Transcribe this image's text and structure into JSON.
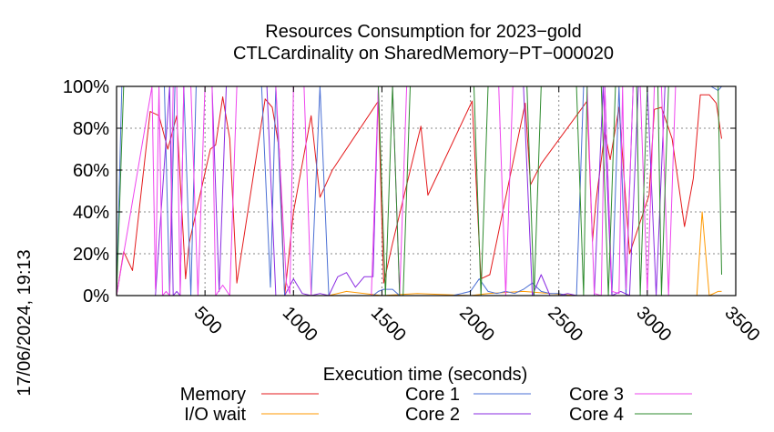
{
  "chart_data": {
    "type": "line",
    "title": "Resources Consumption for 2023−gold",
    "subtitle": "CTLCardinality on SharedMemory−PT−000020",
    "xlabel": "Execution time (seconds)",
    "ylabel": "",
    "side_label": "17/06/2024, 19:13",
    "xlim": [
      0,
      3500
    ],
    "ylim": [
      0,
      100
    ],
    "x_ticks": [
      500,
      1000,
      1500,
      2000,
      2500,
      3000,
      3500
    ],
    "y_ticks": [
      0,
      20,
      40,
      60,
      80,
      100
    ],
    "y_tick_labels": [
      "0%",
      "20%",
      "40%",
      "60%",
      "80%",
      "100%"
    ],
    "grid": true,
    "legend_position": "bottom",
    "series": [
      {
        "name": "Memory",
        "color": "#e41a1c",
        "x": [
          0,
          40,
          90,
          190,
          240,
          290,
          340,
          390,
          410,
          530,
          560,
          600,
          640,
          680,
          840,
          880,
          920,
          950,
          1000,
          1100,
          1150,
          1220,
          1480,
          1510,
          1560,
          1720,
          1760,
          2010,
          2060,
          2110,
          2310,
          2340,
          2400,
          2660,
          2690,
          2710,
          2760,
          2790,
          2840,
          2900,
          3010,
          3040,
          3080,
          3140,
          3210,
          3260,
          3300,
          3350,
          3390,
          3420
        ],
        "y": [
          0,
          21,
          12,
          88,
          86,
          70,
          86,
          8,
          25,
          70,
          72,
          95,
          75,
          6,
          94,
          90,
          70,
          0,
          40,
          86,
          47,
          60,
          93,
          6,
          25,
          81,
          48,
          93,
          8,
          10,
          92,
          53,
          63,
          93,
          26,
          45,
          78,
          65,
          90,
          20,
          48,
          89,
          90,
          75,
          33,
          56,
          96,
          96,
          92,
          75
        ]
      },
      {
        "name": "I/O wait",
        "color": "#ff9900",
        "x": [
          0,
          1200,
          1300,
          1500,
          1700,
          2000,
          2100,
          2300,
          2600,
          2900,
          3000,
          3200,
          3250,
          3280,
          3310,
          3350,
          3400,
          3420
        ],
        "y": [
          0,
          0,
          2,
          0,
          1,
          0,
          1,
          2,
          0,
          0,
          0,
          0,
          0,
          0,
          40,
          0,
          2,
          2
        ]
      },
      {
        "name": "Core 1",
        "color": "#4a6fd4",
        "x": [
          0,
          30,
          180,
          200,
          270,
          300,
          330,
          350,
          380,
          420,
          450,
          470,
          490,
          520,
          560,
          600,
          640,
          680,
          700,
          720,
          760,
          800,
          820,
          870,
          900,
          950,
          1000,
          1050,
          1100,
          1150,
          1200,
          1250,
          1300,
          1350,
          1400,
          1450,
          1480,
          1510,
          1560,
          1600,
          1640,
          1700,
          1750,
          1800,
          1850,
          1900,
          1950,
          2000,
          2050,
          2100,
          2150,
          2200,
          2250,
          2300,
          2350,
          2400,
          2450,
          2500,
          2550,
          2600,
          2640,
          2660,
          2680,
          2700,
          2720,
          2760,
          2800,
          2840,
          2880,
          2920,
          2960,
          3000,
          3040,
          3080,
          3120,
          3160,
          3200,
          3240,
          3280,
          3320,
          3360,
          3400,
          3420
        ],
        "y": [
          0,
          100,
          100,
          100,
          100,
          0,
          100,
          100,
          100,
          0,
          100,
          100,
          100,
          100,
          100,
          100,
          100,
          100,
          100,
          100,
          100,
          100,
          100,
          4,
          100,
          0,
          0,
          0,
          0,
          100,
          0,
          0,
          0,
          0,
          0,
          0,
          2,
          3,
          3,
          0,
          0,
          0,
          0,
          0,
          0,
          0,
          1,
          2,
          8,
          2,
          1,
          2,
          1,
          3,
          6,
          2,
          1,
          1,
          0,
          0,
          100,
          100,
          100,
          100,
          100,
          100,
          0,
          100,
          0,
          100,
          100,
          100,
          100,
          100,
          100,
          100,
          100,
          100,
          100,
          100,
          100,
          98,
          100
        ]
      },
      {
        "name": "Core 2",
        "color": "#8a2be2",
        "x": [
          0,
          180,
          200,
          220,
          300,
          320,
          340,
          360,
          380,
          420,
          460,
          500,
          540,
          580,
          620,
          660,
          700,
          740,
          800,
          850,
          900,
          950,
          1000,
          1050,
          1100,
          1150,
          1200,
          1250,
          1300,
          1350,
          1400,
          1450,
          1480,
          1520,
          1560,
          1600,
          1650,
          1700,
          1750,
          1800,
          1850,
          1900,
          1950,
          2000,
          2050,
          2100,
          2150,
          2200,
          2250,
          2300,
          2350,
          2400,
          2450,
          2500,
          2550,
          2600,
          2650,
          2700,
          2750,
          2800,
          2850,
          2900,
          2950,
          3000,
          3050,
          3100,
          3150,
          3200,
          3250,
          3300,
          3350,
          3400,
          3420
        ],
        "y": [
          0,
          0,
          0,
          0,
          100,
          0,
          2,
          0,
          100,
          100,
          100,
          100,
          100,
          2,
          100,
          100,
          100,
          100,
          100,
          100,
          0,
          0,
          8,
          1,
          0,
          1,
          0,
          9,
          11,
          4,
          9,
          9,
          100,
          100,
          100,
          100,
          100,
          100,
          100,
          100,
          100,
          100,
          100,
          100,
          100,
          100,
          100,
          100,
          100,
          100,
          0,
          10,
          0,
          0,
          1,
          0,
          0,
          0,
          100,
          0,
          2,
          0,
          100,
          100,
          0,
          100,
          100,
          100,
          100,
          100,
          100,
          100,
          100
        ]
      },
      {
        "name": "Core 3",
        "color": "#ee44ee",
        "x": [
          0,
          200,
          220,
          240,
          260,
          280,
          300,
          320,
          340,
          360,
          380,
          400,
          420,
          460,
          500,
          540,
          560,
          600,
          640,
          680,
          700,
          740,
          780,
          820,
          860,
          880,
          900,
          960,
          980,
          1000,
          1040,
          1060,
          1100,
          1440,
          1480,
          1500,
          1520,
          1540,
          1560,
          1600,
          1640,
          1660,
          1700,
          1740,
          1780,
          1820,
          1900,
          1940,
          1980,
          2000,
          2040,
          2080,
          2120,
          2160,
          2200,
          2240,
          2280,
          2320,
          2360,
          2400,
          2440,
          2480,
          2520,
          2560,
          2600,
          2640,
          2660,
          2700,
          2740,
          2760,
          2800,
          2840,
          2860,
          2880,
          2920,
          2960,
          3000,
          3040,
          3080,
          3120,
          3160,
          3180,
          3200,
          3240,
          3280,
          3320,
          3340,
          3360,
          3400,
          3420
        ],
        "y": [
          0,
          100,
          3,
          100,
          0,
          2,
          0,
          100,
          100,
          0,
          100,
          100,
          100,
          0,
          100,
          100,
          0,
          5,
          0,
          100,
          100,
          100,
          100,
          100,
          100,
          100,
          100,
          6,
          1,
          100,
          100,
          100,
          0,
          0,
          100,
          100,
          100,
          100,
          100,
          0,
          100,
          100,
          100,
          100,
          100,
          100,
          100,
          100,
          100,
          100,
          100,
          100,
          100,
          100,
          0,
          100,
          100,
          100,
          100,
          100,
          100,
          100,
          100,
          100,
          100,
          100,
          100,
          1,
          0,
          100,
          2,
          1,
          100,
          3,
          100,
          100,
          1,
          100,
          100,
          0,
          100,
          100,
          100,
          100,
          100,
          100,
          100,
          100,
          100,
          100
        ]
      },
      {
        "name": "Core 4",
        "color": "#2e8b2e",
        "x": [
          0,
          40,
          180,
          200,
          220,
          260,
          280,
          300,
          320,
          360,
          380,
          420,
          460,
          500,
          520,
          560,
          600,
          640,
          660,
          700,
          740,
          780,
          800,
          840,
          880,
          900,
          940,
          1000,
          1050,
          1100,
          1150,
          1200,
          1250,
          1300,
          1350,
          1400,
          1440,
          1480,
          1520,
          1560,
          1600,
          1620,
          1660,
          1700,
          1740,
          1780,
          1820,
          1860,
          1900,
          1940,
          1980,
          2000,
          2020,
          2060,
          2100,
          2140,
          2180,
          2220,
          2260,
          2300,
          2320,
          2360,
          2400,
          2440,
          2480,
          2520,
          2560,
          2600,
          2640,
          2660,
          2700,
          2740,
          2780,
          2820,
          2860,
          2900,
          2940,
          2960,
          3000,
          3040,
          3060,
          3080,
          3120,
          3160,
          3200,
          3240,
          3280,
          3320,
          3360,
          3400,
          3420
        ],
        "y": [
          0,
          100,
          100,
          100,
          100,
          100,
          100,
          100,
          100,
          100,
          100,
          100,
          100,
          100,
          100,
          100,
          100,
          100,
          100,
          100,
          100,
          100,
          100,
          100,
          100,
          100,
          100,
          100,
          100,
          100,
          100,
          100,
          100,
          100,
          100,
          100,
          100,
          100,
          0,
          100,
          0,
          0,
          100,
          100,
          100,
          100,
          100,
          100,
          100,
          100,
          100,
          100,
          100,
          0,
          100,
          100,
          100,
          100,
          100,
          100,
          100,
          0,
          100,
          100,
          100,
          100,
          100,
          100,
          0,
          100,
          100,
          100,
          0,
          100,
          100,
          100,
          100,
          0,
          100,
          100,
          100,
          0,
          100,
          100,
          100,
          100,
          100,
          100,
          100,
          100,
          10
        ]
      }
    ]
  }
}
